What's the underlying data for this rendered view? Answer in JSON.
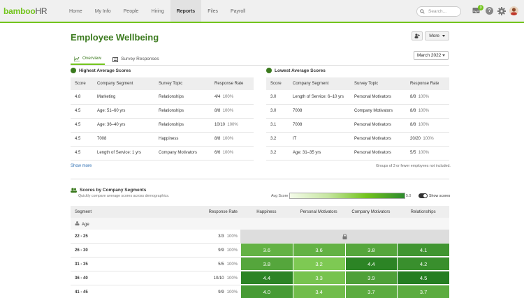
{
  "brand": {
    "name": "bamboo",
    "suffix": "HR",
    "accent": "#73c41d"
  },
  "nav": [
    {
      "label": "Home"
    },
    {
      "label": "My Info"
    },
    {
      "label": "People"
    },
    {
      "label": "Hiring"
    },
    {
      "label": "Reports",
      "active": true
    },
    {
      "label": "Files"
    },
    {
      "label": "Payroll"
    }
  ],
  "search": {
    "placeholder": "Search..."
  },
  "inbox_count": "3",
  "help": "?",
  "page": {
    "title": "Employee Wellbeing",
    "more_label": "More"
  },
  "tabs": {
    "overview": "Overview",
    "survey": "Survey Responses"
  },
  "month": "March 2022",
  "highest": {
    "title": "Highest Average Scores",
    "headers": [
      "Score",
      "Company Segment",
      "Survey Topic",
      "Response Rate"
    ],
    "rows": [
      {
        "score": "4.8",
        "segment": "Marketing",
        "topic": "Relationships",
        "frac": "4/4",
        "pct": "100%"
      },
      {
        "score": "4.5",
        "segment": "Age: 51–60 yrs",
        "topic": "Relationships",
        "frac": "8/8",
        "pct": "100%"
      },
      {
        "score": "4.5",
        "segment": "Age: 36–40 yrs",
        "topic": "Relationships",
        "frac": "10/10",
        "pct": "100%"
      },
      {
        "score": "4.5",
        "segment": "7008",
        "topic": "Happiness",
        "frac": "8/8",
        "pct": "100%"
      },
      {
        "score": "4.5",
        "segment": "Length of Service: 1 yrs",
        "topic": "Company Motivators",
        "frac": "6/6",
        "pct": "100%"
      }
    ]
  },
  "lowest": {
    "title": "Lowest Average Scores",
    "headers": [
      "Score",
      "Company Segment",
      "Survey Topic",
      "Response Rate"
    ],
    "rows": [
      {
        "score": "3.0",
        "segment": "Length of Service: 6–10 yrs",
        "topic": "Personal Motivators",
        "frac": "8/8",
        "pct": "100%"
      },
      {
        "score": "3.0",
        "segment": "7008",
        "topic": "Company Motivators",
        "frac": "8/8",
        "pct": "100%"
      },
      {
        "score": "3.1",
        "segment": "7008",
        "topic": "Personal Motivators",
        "frac": "8/8",
        "pct": "100%"
      },
      {
        "score": "3.2",
        "segment": "IT",
        "topic": "Personal Motivators",
        "frac": "20/20",
        "pct": "100%"
      },
      {
        "score": "3.2",
        "segment": "Age: 31–35 yrs",
        "topic": "Personal Motivators",
        "frac": "5/5",
        "pct": "100%"
      }
    ]
  },
  "show_more": "Show more",
  "note": "Groups of 3 or fewer employees not included.",
  "segments": {
    "title": "Scores by Company Segments",
    "subtitle": "Quickly compare average scores across demographics.",
    "avg_label": "Avg Score",
    "scale_max": "5.0",
    "show_scores": "Show scores",
    "headers": [
      "Segment",
      "Response Rate",
      "Happiness",
      "Personal Motivators",
      "Company Motivators",
      "Relationships"
    ],
    "group": "Age",
    "rows": [
      {
        "label": "22 - 25",
        "frac": "3/3",
        "pct": "100%",
        "locked": true,
        "values": []
      },
      {
        "label": "26 - 30",
        "frac": "9/9",
        "pct": "100%",
        "values": [
          "3.6",
          "3.6",
          "3.8",
          "4.1"
        ]
      },
      {
        "label": "31 - 35",
        "frac": "5/5",
        "pct": "100%",
        "values": [
          "3.8",
          "3.2",
          "4.4",
          "4.2"
        ]
      },
      {
        "label": "36 - 40",
        "frac": "10/10",
        "pct": "100%",
        "values": [
          "4.4",
          "3.3",
          "3.9",
          "4.5"
        ]
      },
      {
        "label": "41 - 45",
        "frac": "9/9",
        "pct": "100%",
        "values": [
          "4.0",
          "3.4",
          "3.7",
          "3.7"
        ]
      }
    ]
  }
}
